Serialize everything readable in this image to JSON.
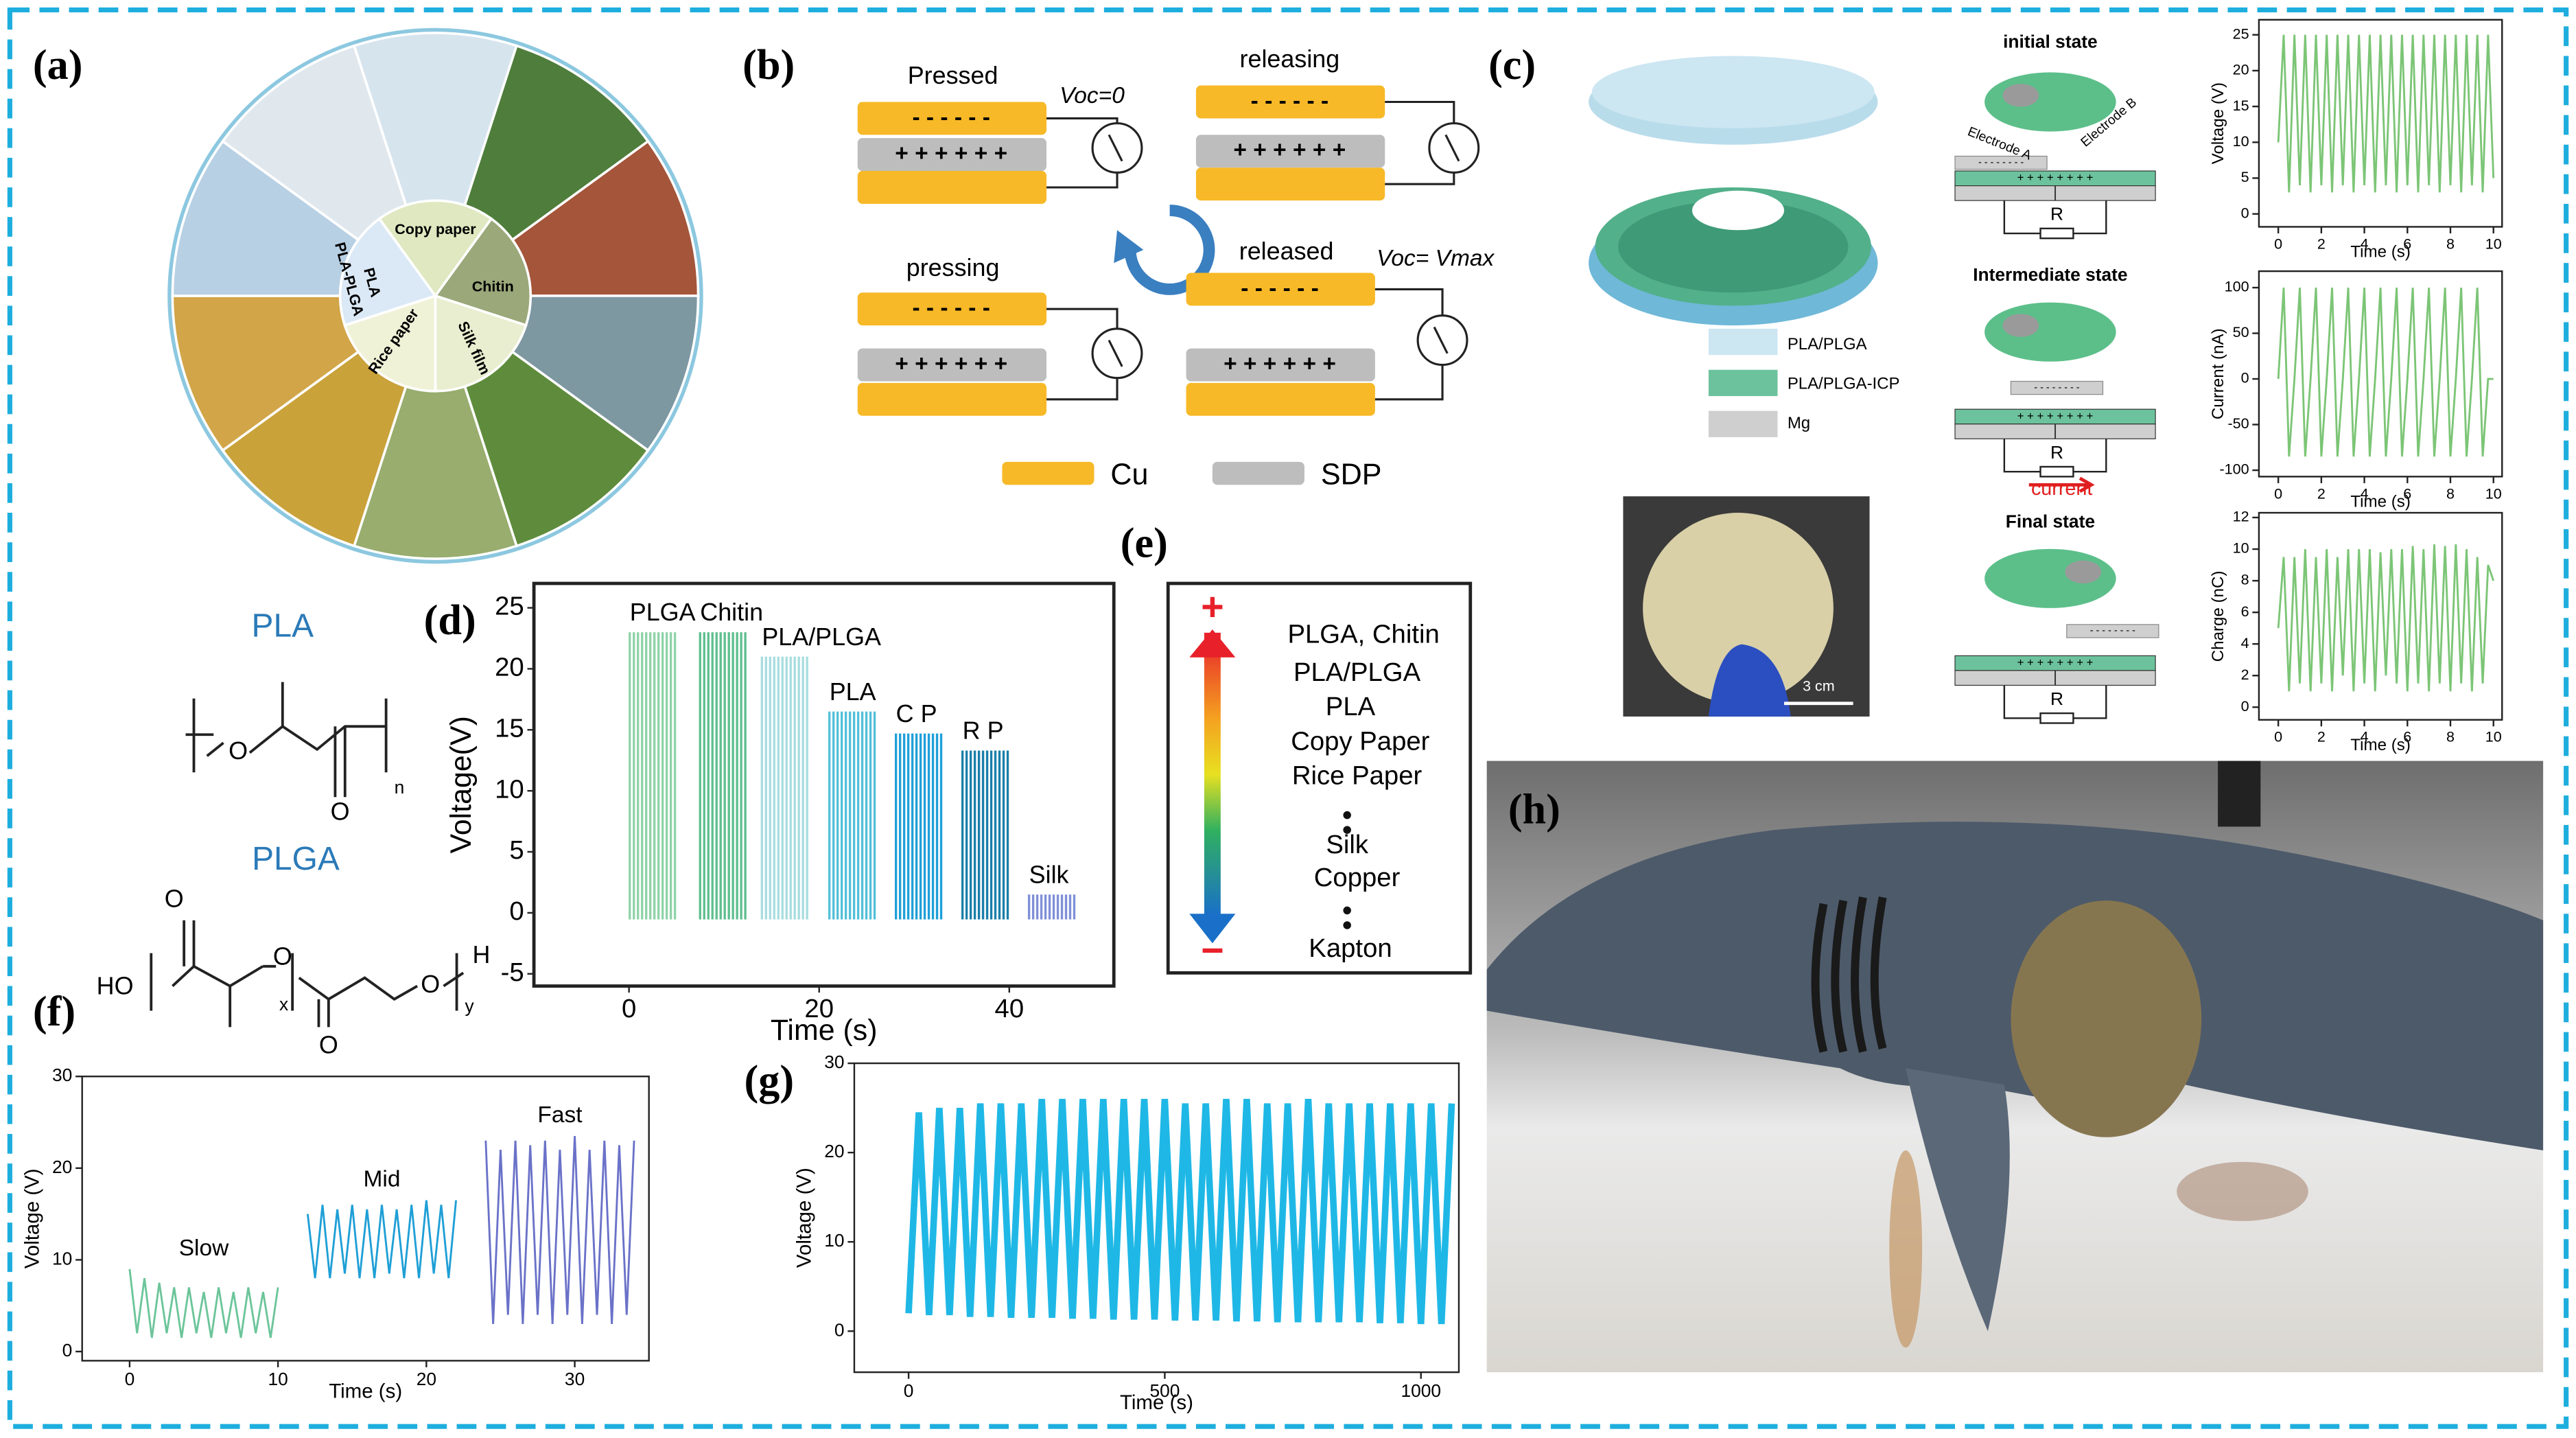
{
  "panel_labels": [
    "(a)",
    "(b)",
    "(c)",
    "(d)",
    "(e)",
    "(f)",
    "(g)",
    "(h)"
  ],
  "wheel": {
    "labels": [
      "Copy paper",
      "Chitin",
      "Silk film",
      "Rice paper",
      "PLA-PLGA",
      "PLA"
    ]
  },
  "mechanism": {
    "states": [
      "Pressed",
      "releasing",
      "pressing",
      "released"
    ],
    "voc_zero": "Voc=0",
    "voc_max": "Voc= Vmax",
    "negative": "- - - - - -",
    "positive": "+ + + + + +",
    "legend": [
      "Cu",
      "SDP"
    ]
  },
  "device": {
    "legend": [
      "PLA/PLGA",
      "PLA/PLGA-ICP",
      "Mg"
    ],
    "states": [
      "initial state",
      "Intermediate state",
      "Final state"
    ],
    "electrodes": [
      "Electrode A",
      "Electrode B"
    ],
    "resistor": "R",
    "current": "current",
    "negative": "- - - - - - - -",
    "positive": "+ + + + + + + +",
    "scale": "3 cm"
  },
  "ranking": {
    "plus": "+",
    "minus": "−",
    "items": [
      "PLGA, Chitin",
      "PLA/PLGA",
      "PLA",
      "Copy Paper",
      "Rice Paper",
      "Silk",
      "Copper",
      "Kapton"
    ]
  },
  "chemistry": {
    "pla": {
      "name": "PLA",
      "atoms": [
        "O",
        "O",
        "n"
      ]
    },
    "plga": {
      "name": "PLGA",
      "atoms": [
        "HO",
        "O",
        "O",
        "x",
        "O",
        "O",
        "H",
        "y"
      ]
    }
  },
  "chart_data": [
    {
      "type": "bar",
      "xlabel": "Time (s)",
      "ylabel": "Voltage(V)",
      "categories": [
        "PLGA",
        "Chitin",
        "PLA/PLGA",
        "PLA",
        "C P",
        "R P",
        "Silk"
      ],
      "x": [
        2.5,
        9.9,
        16.4,
        23.5,
        30.5,
        37.5,
        44.5
      ],
      "values": [
        23,
        23,
        21,
        16.5,
        14.7,
        13.3,
        1.5
      ],
      "colors": [
        "#8fd3a8",
        "#5fbf8f",
        "#a8dde0",
        "#52c0d8",
        "#1fa0d8",
        "#1a7faa",
        "#7f8fd8"
      ],
      "xlim": [
        -10,
        51
      ],
      "ylim": [
        -6,
        27
      ],
      "xticks": [
        0,
        20,
        40
      ],
      "yticks": [
        -5,
        0,
        5,
        10,
        15,
        20,
        25
      ]
    },
    {
      "type": "line",
      "xlabel": "Time (s)",
      "ylabel": "Voltage (V)",
      "xlim": [
        -3.2,
        35
      ],
      "ylim": [
        -1,
        30
      ],
      "xticks": [
        0,
        10,
        20,
        30
      ],
      "yticks": [
        0,
        10,
        20,
        30
      ],
      "series": [
        {
          "name": "Slow",
          "color": "#6cc59a",
          "x": [
            0,
            0.5,
            1,
            1.5,
            2,
            2.5,
            3,
            3.5,
            4,
            4.5,
            5,
            5.5,
            6,
            6.5,
            7,
            7.5,
            8,
            8.5,
            9,
            9.5,
            10
          ],
          "values": [
            9,
            2,
            8,
            1.5,
            7.5,
            2,
            7,
            1.5,
            7,
            2,
            6.5,
            1.5,
            7,
            2,
            6.5,
            1.5,
            7,
            2,
            6.5,
            1.5,
            7
          ]
        },
        {
          "name": "Mid",
          "color": "#1f9fd6",
          "x": [
            12,
            12.5,
            13,
            13.5,
            14,
            14.5,
            15,
            15.5,
            16,
            16.5,
            17,
            17.5,
            18,
            18.5,
            19,
            19.5,
            20,
            20.5,
            21,
            21.5,
            22
          ],
          "values": [
            15,
            8,
            16,
            8,
            15.5,
            8.5,
            16,
            8,
            15.5,
            8,
            16,
            8.5,
            15.5,
            8,
            16,
            8,
            16.5,
            8.5,
            16,
            8,
            16.5
          ]
        },
        {
          "name": "Fast",
          "color": "#6a72c8",
          "x": [
            24,
            24.5,
            25,
            25.5,
            26,
            26.5,
            27,
            27.5,
            28,
            28.5,
            29,
            29.5,
            30,
            30.5,
            31,
            31.5,
            32,
            32.5,
            33,
            33.5,
            34
          ],
          "values": [
            23,
            3,
            22,
            4,
            23,
            3,
            22.5,
            4,
            23,
            3,
            22,
            4,
            23.5,
            3,
            22,
            4,
            23,
            3,
            22.5,
            4,
            23
          ]
        }
      ]
    },
    {
      "type": "line",
      "xlabel": "Time (s)",
      "ylabel": "Voltage (V)",
      "xlim": [
        -106,
        1074
      ],
      "ylim": [
        -4.6,
        30
      ],
      "xticks": [
        0,
        500,
        1000
      ],
      "yticks": [
        0,
        10,
        20,
        30
      ],
      "x": [
        0,
        20,
        40,
        60,
        80,
        100,
        120,
        140,
        160,
        180,
        200,
        220,
        240,
        260,
        280,
        300,
        320,
        340,
        360,
        380,
        400,
        420,
        440,
        460,
        480,
        500,
        520,
        540,
        560,
        580,
        600,
        620,
        640,
        660,
        680,
        700,
        720,
        740,
        760,
        780,
        800,
        820,
        840,
        860,
        880,
        900,
        920,
        940,
        960,
        980,
        1000,
        1020,
        1040,
        1060
      ],
      "series": [
        {
          "color": "#1fb8e6",
          "values": [
            2,
            24.5,
            1.8,
            25,
            1.8,
            25,
            1.6,
            25.5,
            1.6,
            25.5,
            1.5,
            25.5,
            1.5,
            26,
            1.5,
            26,
            1.4,
            26,
            1.4,
            26,
            1.3,
            26,
            1.3,
            26,
            1.3,
            26,
            1.2,
            25.5,
            1.2,
            25.5,
            1.2,
            26,
            1.1,
            26,
            1.1,
            25.5,
            1,
            25.5,
            1,
            26,
            1,
            25.5,
            1,
            25.5,
            1,
            25.5,
            0.9,
            25.5,
            0.9,
            25.5,
            0.8,
            25.5,
            0.8,
            25.5
          ]
        }
      ]
    },
    {
      "type": "line",
      "xlabel": "Time (s)",
      "ylabel": "Voltage (V)",
      "xlim": [
        -0.9,
        10.4
      ],
      "ylim": [
        -1.8,
        27.1
      ],
      "xticks": [
        0,
        2,
        4,
        6,
        8,
        10
      ],
      "yticks": [
        0,
        5,
        10,
        15,
        20,
        25
      ],
      "x": [
        0,
        0.25,
        0.5,
        0.75,
        1,
        1.25,
        1.5,
        1.75,
        2,
        2.25,
        2.5,
        2.75,
        3,
        3.25,
        3.5,
        3.75,
        4,
        4.25,
        4.5,
        4.75,
        5,
        5.25,
        5.5,
        5.75,
        6,
        6.25,
        6.5,
        6.75,
        7,
        7.25,
        7.5,
        7.75,
        8,
        8.25,
        8.5,
        8.75,
        9,
        9.25,
        9.5,
        9.75,
        10
      ],
      "series": [
        {
          "color": "#7cc576",
          "values": [
            10,
            25,
            3,
            25,
            4,
            25,
            3,
            25,
            4,
            25,
            3,
            25,
            4,
            25,
            3,
            25,
            4,
            25,
            3,
            25,
            4,
            25,
            3,
            25,
            4,
            25,
            3,
            25,
            4,
            25,
            3,
            25,
            4,
            25,
            3,
            25,
            4,
            25,
            3,
            25,
            5
          ]
        }
      ]
    },
    {
      "type": "line",
      "xlabel": "Time (s)",
      "ylabel": "Current (nA)",
      "xlim": [
        -0.9,
        10.4
      ],
      "ylim": [
        -107,
        118
      ],
      "xticks": [
        0,
        2,
        4,
        6,
        8,
        10
      ],
      "yticks": [
        -100,
        -50,
        0,
        50,
        100
      ],
      "x": [
        0,
        0.25,
        0.5,
        0.75,
        1,
        1.25,
        1.5,
        1.75,
        2,
        2.25,
        2.5,
        2.75,
        3,
        3.25,
        3.5,
        3.75,
        4,
        4.25,
        4.5,
        4.75,
        5,
        5.25,
        5.5,
        5.75,
        6,
        6.25,
        6.5,
        6.75,
        7,
        7.25,
        7.5,
        7.75,
        8,
        8.25,
        8.5,
        8.75,
        9,
        9.25,
        9.5,
        9.75,
        10
      ],
      "series": [
        {
          "color": "#7cc576",
          "values": [
            0,
            100,
            -85,
            0,
            100,
            -85,
            0,
            100,
            -85,
            0,
            100,
            -85,
            0,
            100,
            -85,
            0,
            100,
            -85,
            0,
            100,
            -85,
            0,
            100,
            -85,
            0,
            100,
            -85,
            0,
            100,
            -85,
            0,
            100,
            -85,
            0,
            100,
            -85,
            0,
            100,
            -85,
            0,
            0
          ]
        }
      ]
    },
    {
      "type": "line",
      "xlabel": "Time (s)",
      "ylabel": "Charge (nC)",
      "xlim": [
        -0.9,
        10.4
      ],
      "ylim": [
        -0.8,
        12.3
      ],
      "xticks": [
        0,
        2,
        4,
        6,
        8,
        10
      ],
      "yticks": [
        0,
        2,
        4,
        6,
        8,
        10,
        12
      ],
      "x": [
        0,
        0.25,
        0.5,
        0.75,
        1,
        1.25,
        1.5,
        1.75,
        2,
        2.25,
        2.5,
        2.75,
        3,
        3.25,
        3.5,
        3.75,
        4,
        4.25,
        4.5,
        4.75,
        5,
        5.25,
        5.5,
        5.75,
        6,
        6.25,
        6.5,
        6.75,
        7,
        7.25,
        7.5,
        7.75,
        8,
        8.25,
        8.5,
        8.75,
        9,
        9.25,
        9.5,
        9.75,
        10
      ],
      "series": [
        {
          "color": "#7cc576",
          "values": [
            5,
            9.5,
            1,
            9.5,
            1.5,
            10,
            1,
            9.5,
            1.5,
            10,
            1,
            9.5,
            2,
            10,
            1,
            10,
            1.5,
            10,
            1,
            9.8,
            2,
            10,
            1.5,
            10,
            1,
            10.2,
            1.5,
            10,
            1,
            10.3,
            1.5,
            10.2,
            1,
            10.3,
            1.5,
            10,
            1,
            9.5,
            1.5,
            9,
            8
          ]
        }
      ]
    }
  ]
}
